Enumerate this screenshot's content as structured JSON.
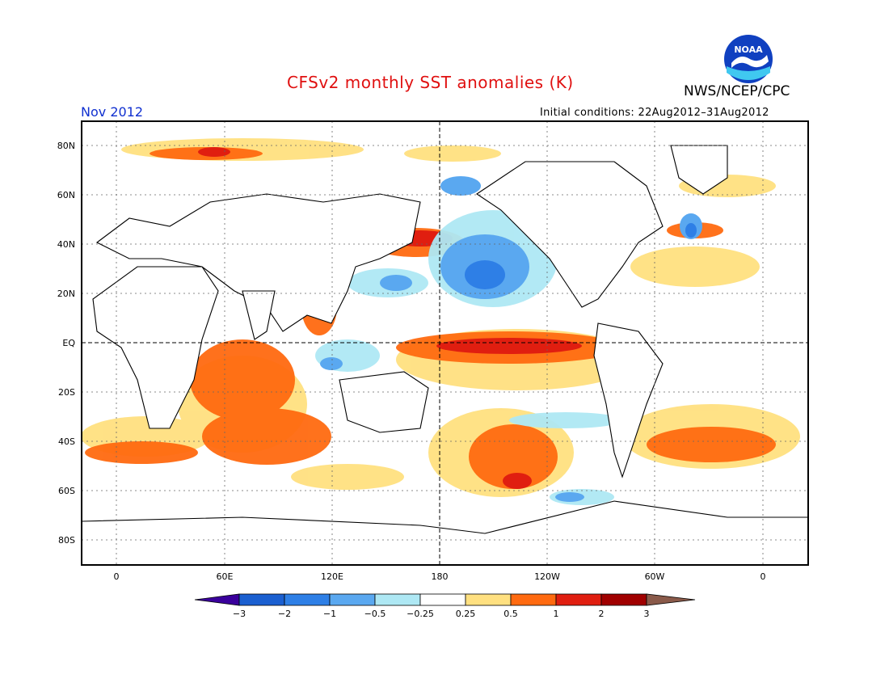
{
  "header": {
    "title": "CFSv2 monthly SST anomalies (K)",
    "agency": "NWS/NCEP/CPC",
    "logo_text": "NOAA",
    "valid_month": "Nov 2012",
    "initial_conditions": "Initial conditions: 22Aug2012–31Aug2012"
  },
  "axes": {
    "lat_labels": [
      "80N",
      "60N",
      "40N",
      "20N",
      "EQ",
      "20S",
      "40S",
      "60S",
      "80S"
    ],
    "lon_labels": [
      "0",
      "60E",
      "120E",
      "180",
      "120W",
      "60W",
      "0"
    ]
  },
  "colorbar": {
    "labels": [
      "−3",
      "−2",
      "−1",
      "−0.5",
      "−0.25",
      "0.25",
      "0.5",
      "1",
      "2",
      "3"
    ],
    "colors": [
      "#3a009c",
      "#1a5fd0",
      "#2e7fe6",
      "#5aa8f0",
      "#aee8f4",
      "#ffffff",
      "#ffe080",
      "#ff6a10",
      "#e01e10",
      "#a00000",
      "#8a5a4a"
    ]
  },
  "features": {
    "ocean_color": "#ffffff",
    "coastline_color": "#000000",
    "anomaly_regions": [
      "El Nino-like warm tongue (+1 to +2 K) along the equatorial central Pacific",
      "Warm anomalies (+1 to +2 K) in the NW Pacific near Japan around 40N",
      "Cold anomalies (-0.5 to -1 K) in the North Pacific",
      "Warm anomalies in the southern Indian Ocean",
      "Warm anomalies (+1 to +2 K) in the South Pacific near 50S"
    ]
  }
}
